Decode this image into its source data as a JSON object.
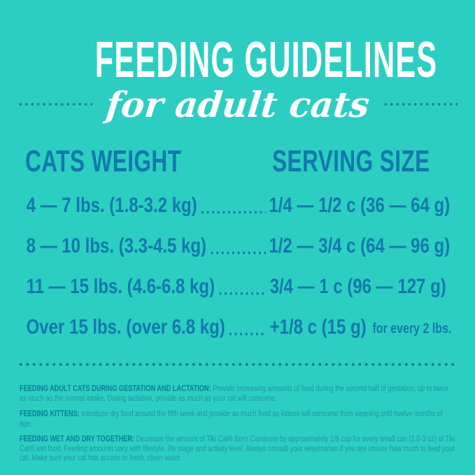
{
  "colors": {
    "background": "#2CCEC2",
    "title_text": "#FFFFFF",
    "table_text": "#1478AE",
    "dotted_lines": "#1A7D90",
    "footnote_label": "#0B7E98",
    "footnote_text": "#1E95A1"
  },
  "header": {
    "title": "FEEDING GUIDELINES",
    "subtitle": "for adult cats"
  },
  "table": {
    "weight_header": "CATS WEIGHT",
    "serving_header": "SERVING SIZE",
    "rows": [
      {
        "weight": "4 — 7 lbs. (1.8-3.2 kg)",
        "serving": "1/4 — 1/2 c (36 — 64 g)",
        "note": ""
      },
      {
        "weight": "8 — 10 lbs. (3.3-4.5 kg)",
        "serving": "1/2 — 3/4 c (64 — 96 g)",
        "note": ""
      },
      {
        "weight": "11 — 15 lbs. (4.6-6.8 kg)",
        "serving": "3/4 — 1 c (96 — 127 g)",
        "note": ""
      },
      {
        "weight": "Over 15 lbs. (over 6.8 kg)",
        "serving": "+1/8 c (15 g)",
        "note": "for every 2 lbs."
      }
    ]
  },
  "footnotes": [
    {
      "label": "FEEDING ADULT CATS DURING GESTATION AND LACTATION:",
      "text": "Provide increasing amounts of food during the second half of gestation, up to twice as much as the normal intake.  During lactation, provide as much as your cat will consume."
    },
    {
      "label": "FEEDING KITTENS:",
      "text": "Introduce dry food around the fifth week and provide as much food as kittens will consume from weaning until twelve months of age."
    },
    {
      "label": "FEEDING WET AND DRY TOGETHER:",
      "text": "Decrease the amount of Tiki Cat® Born Carnivore by approximately 1/8 cup for every small can (2.8-3 oz) of Tiki Cat® wet food. Feeding amounts vary with lifestyle, life stage and activity level.  Always consult your veterinarian if you are unsure how much to feed your cat. Make sure your cat has access to fresh, clean water."
    }
  ]
}
